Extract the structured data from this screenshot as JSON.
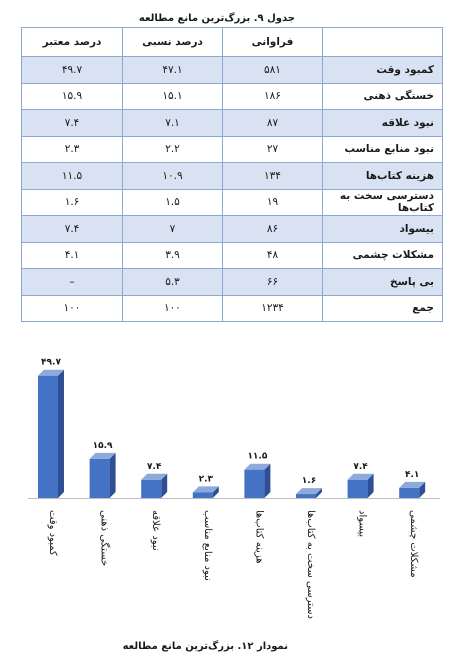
{
  "table": {
    "caption": "جدول ۹. بزرگ‌ترین مانع مطالعه",
    "headers": {
      "category": "",
      "frequency": "فراوانی",
      "relative": "درصد نسبی",
      "valid": "درصد معتبر"
    },
    "rows": [
      {
        "category": "کمبود وقت",
        "frequency": "۵۸۱",
        "relative": "۴۷.۱",
        "valid": "۴۹.۷"
      },
      {
        "category": "خستگی ذهنی",
        "frequency": "۱۸۶",
        "relative": "۱۵.۱",
        "valid": "۱۵.۹"
      },
      {
        "category": "نبود علاقه",
        "frequency": "۸۷",
        "relative": "۷.۱",
        "valid": "۷.۴"
      },
      {
        "category": "نبود منابع مناسب",
        "frequency": "۲۷",
        "relative": "۲.۲",
        "valid": "۲.۳"
      },
      {
        "category": "هزینه کتاب‌ها",
        "frequency": "۱۳۴",
        "relative": "۱۰.۹",
        "valid": "۱۱.۵"
      },
      {
        "category": "دسترسی سخت به کتاب‌ها",
        "frequency": "۱۹",
        "relative": "۱.۵",
        "valid": "۱.۶"
      },
      {
        "category": "بیسواد",
        "frequency": "۸۶",
        "relative": "۷",
        "valid": "۷.۴"
      },
      {
        "category": "مشکلات چشمی",
        "frequency": "۴۸",
        "relative": "۳.۹",
        "valid": "۴.۱"
      },
      {
        "category": "بی پاسخ",
        "frequency": "۶۶",
        "relative": "۵.۳",
        "valid": "–"
      },
      {
        "category": "جمع",
        "frequency": "۱۲۳۴",
        "relative": "۱۰۰",
        "valid": "۱۰۰"
      }
    ]
  },
  "chart_caption": "نمودار ۱۲. بزرگ‌ترین مانع مطالعه",
  "chart_data": {
    "type": "bar",
    "categories": [
      "کمبود وقت",
      "خستگی ذهنی",
      "نبود علاقه",
      "نبود منابع مناسب",
      "هزینه کتاب‌ها",
      "دسترسی سخت به کتاب‌ها",
      "بیسواد",
      "مشکلات چشمی"
    ],
    "values": [
      49.7,
      15.9,
      7.4,
      2.3,
      11.5,
      1.6,
      7.4,
      4.1
    ],
    "data_labels": [
      "۴۹.۷",
      "۱۵.۹",
      "۷.۴",
      "۲.۳",
      "۱۱.۵",
      "۱.۶",
      "۷.۴",
      "۴.۱"
    ],
    "title": "",
    "xlabel": "",
    "ylabel": "",
    "ylim": [
      0,
      50
    ],
    "grid": false,
    "legend": "none",
    "colors": {
      "front": "#4472c4",
      "side": "#2f4f94",
      "top": "#8eaadb",
      "floor": "#bfbfbf"
    }
  }
}
